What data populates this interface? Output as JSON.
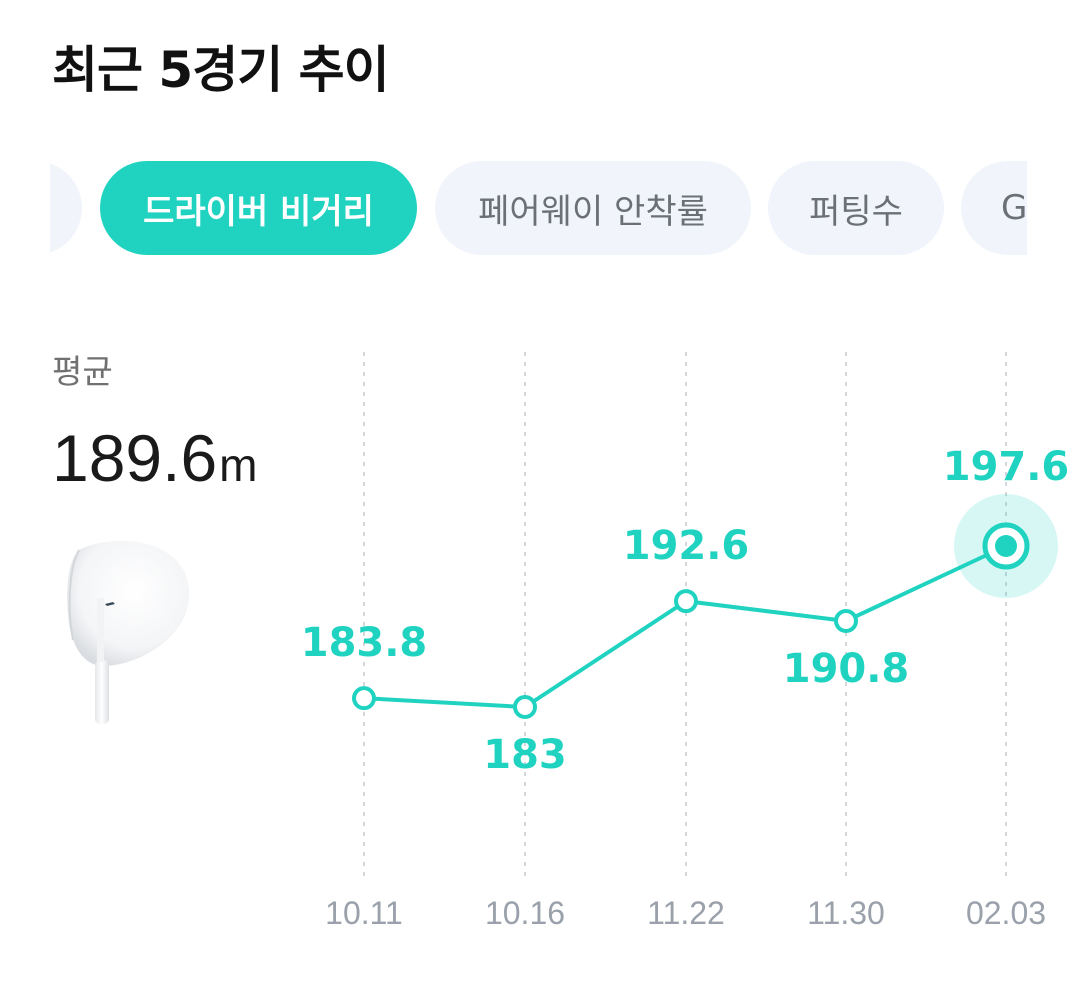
{
  "header": {
    "title": "최근 5경기 추이"
  },
  "tabs": [
    {
      "label": "",
      "active": false
    },
    {
      "label": "드라이버 비거리",
      "active": true
    },
    {
      "label": "페어웨이 안착률",
      "active": false
    },
    {
      "label": "퍼팅수",
      "active": false
    },
    {
      "label": "G",
      "active": false
    }
  ],
  "summary": {
    "label": "평균",
    "value": "189.6",
    "unit": "m",
    "image_icon": "golf-driver-club-image"
  },
  "colors": {
    "accent": "#20d3c0",
    "tab_inactive_bg": "#f1f4fb",
    "tick_text": "#9aa1ab",
    "gridline": "#d3d6db"
  },
  "chart_data": {
    "type": "line",
    "categories": [
      "10.11",
      "10.16",
      "11.22",
      "11.30",
      "02.03"
    ],
    "values": [
      183.8,
      183,
      192.6,
      190.8,
      197.6
    ],
    "value_labels": [
      "183.8",
      "183",
      "192.6",
      "190.8",
      "197.6"
    ],
    "highlight_index": 4,
    "grid": "vertical-dashed",
    "title": "",
    "xlabel": "",
    "ylabel": ""
  }
}
